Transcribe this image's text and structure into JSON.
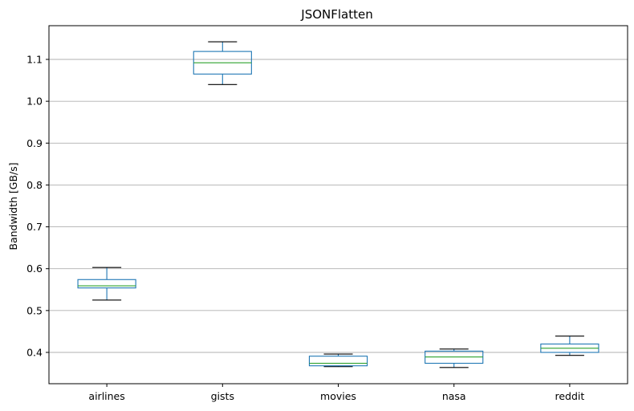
{
  "chart_data": {
    "type": "box",
    "title": "JSONFlatten",
    "xlabel": "",
    "ylabel": "Bandwidth [GB/s]",
    "ylim": [
      0.325,
      1.18
    ],
    "yticks": [
      0.4,
      0.5,
      0.6,
      0.7,
      0.8,
      0.9,
      1.0,
      1.1
    ],
    "ytick_labels": [
      "0.4",
      "0.5",
      "0.6",
      "0.7",
      "0.8",
      "0.9",
      "1.0",
      "1.1"
    ],
    "grid": "horizontal",
    "categories": [
      "airlines",
      "gists",
      "movies",
      "nasa",
      "reddit"
    ],
    "boxes": [
      {
        "name": "airlines",
        "whisker_low": 0.525,
        "q1": 0.554,
        "median": 0.559,
        "q3": 0.574,
        "whisker_high": 0.603
      },
      {
        "name": "gists",
        "whisker_low": 1.04,
        "q1": 1.065,
        "median": 1.092,
        "q3": 1.119,
        "whisker_high": 1.142
      },
      {
        "name": "movies",
        "whisker_low": 0.366,
        "q1": 0.368,
        "median": 0.374,
        "q3": 0.391,
        "whisker_high": 0.396
      },
      {
        "name": "nasa",
        "whisker_low": 0.364,
        "q1": 0.374,
        "median": 0.389,
        "q3": 0.403,
        "whisker_high": 0.408
      },
      {
        "name": "reddit",
        "whisker_low": 0.393,
        "q1": 0.4,
        "median": 0.41,
        "q3": 0.42,
        "whisker_high": 0.439
      }
    ],
    "colors": {
      "box": "#1f77b4",
      "median": "#2ca02c",
      "whisker_cap": "#000000",
      "grid": "#b0b0b0",
      "axes": "#000000"
    }
  }
}
